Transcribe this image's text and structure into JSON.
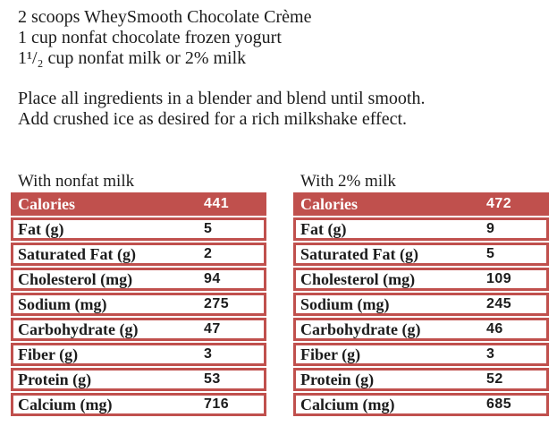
{
  "page": {
    "background_color": "#ffffff",
    "accent_red": "#C0504D",
    "body_text_color": "#1c1c1c",
    "table_header_text_color": "#ffffff"
  },
  "recipe": {
    "ingredients": [
      "2 scoops WheySmooth Chocolate Crème",
      "1 cup nonfat chocolate frozen yogurt",
      "1¹/₂ cup nonfat milk or 2% milk"
    ],
    "instructions": [
      "Place all ingredients in a blender and blend until smooth.",
      "Add crushed ice as desired for a rich milkshake effect."
    ]
  },
  "tables": [
    {
      "caption": "With nonfat milk",
      "rows": [
        {
          "label": "Calories",
          "value": "441"
        },
        {
          "label": "Fat (g)",
          "value": "5"
        },
        {
          "label": "Saturated Fat (g)",
          "value": "2"
        },
        {
          "label": "Cholesterol (mg)",
          "value": "94"
        },
        {
          "label": "Sodium (mg)",
          "value": "275"
        },
        {
          "label": "Carbohydrate (g)",
          "value": "47"
        },
        {
          "label": "Fiber (g)",
          "value": "3"
        },
        {
          "label": "Protein (g)",
          "value": "53"
        },
        {
          "label": "Calcium (mg)",
          "value": "716"
        }
      ]
    },
    {
      "caption": "With 2% milk",
      "rows": [
        {
          "label": "Calories",
          "value": "472"
        },
        {
          "label": "Fat (g)",
          "value": "9"
        },
        {
          "label": "Saturated Fat (g)",
          "value": "5"
        },
        {
          "label": "Cholesterol (mg)",
          "value": "109"
        },
        {
          "label": "Sodium (mg)",
          "value": "245"
        },
        {
          "label": "Carbohydrate (g)",
          "value": "46"
        },
        {
          "label": "Fiber (g)",
          "value": "3"
        },
        {
          "label": "Protein (g)",
          "value": "52"
        },
        {
          "label": "Calcium (mg)",
          "value": "685"
        }
      ]
    }
  ]
}
